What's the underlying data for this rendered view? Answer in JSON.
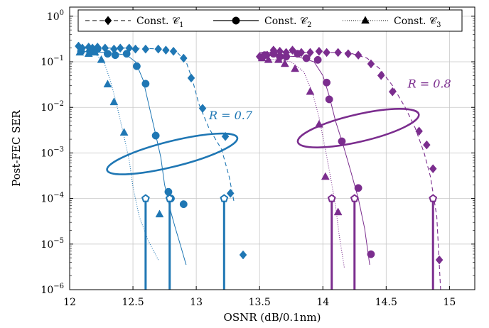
{
  "chart_data": {
    "type": "line",
    "xlabel": "OSNR (dB/0.1nm)",
    "ylabel": "Post-FEC SER",
    "xlim": [
      12,
      15.2
    ],
    "ylim_log10": [
      -6,
      0.2
    ],
    "y_scale": "log",
    "grid": true,
    "legend_placement": "top",
    "x_ticks": [
      {
        "value": 12,
        "label": "12"
      },
      {
        "value": 12.5,
        "label": "12.5"
      },
      {
        "value": 13,
        "label": "13"
      },
      {
        "value": 13.5,
        "label": "13.5"
      },
      {
        "value": 14,
        "label": "14"
      },
      {
        "value": 14.5,
        "label": "14.5"
      },
      {
        "value": 15,
        "label": "15"
      }
    ],
    "y_ticks": [
      {
        "exp": 0,
        "base": "10",
        "sup": "0"
      },
      {
        "exp": -1,
        "base": "10",
        "sup": "−1"
      },
      {
        "exp": -2,
        "base": "10",
        "sup": "−2"
      },
      {
        "exp": -3,
        "base": "10",
        "sup": "−3"
      },
      {
        "exp": -4,
        "base": "10",
        "sup": "−4"
      },
      {
        "exp": -5,
        "base": "10",
        "sup": "−5"
      },
      {
        "exp": -6,
        "base": "10",
        "sup": "−6"
      }
    ],
    "colors": {
      "blue": "#1f77b4",
      "purple": "#7b2d8e"
    },
    "legend": [
      {
        "label": "Const. 𝒞",
        "sub": "1",
        "line": "dashed",
        "marker": "diamond"
      },
      {
        "label": "Const. 𝒞",
        "sub": "2",
        "line": "solid",
        "marker": "circle"
      },
      {
        "label": "Const. 𝒞",
        "sub": "3",
        "line": "dotted",
        "marker": "triangle"
      }
    ],
    "annotations": [
      {
        "text": "R = 0.7",
        "x": 13.1,
        "y": 0.0055,
        "color": "blue"
      },
      {
        "text": "R = 0.8",
        "x": 14.67,
        "y": 0.027,
        "color": "purple"
      }
    ],
    "series": [
      {
        "group": "R = 0.7",
        "constellation": "C1",
        "color": "blue",
        "kind": "markers",
        "marker": "diamond",
        "points": [
          [
            12.07,
            0.22
          ],
          [
            12.1,
            0.2
          ],
          [
            12.15,
            0.21
          ],
          [
            12.18,
            0.2
          ],
          [
            12.22,
            0.21
          ],
          [
            12.28,
            0.2
          ],
          [
            12.35,
            0.19
          ],
          [
            12.4,
            0.2
          ],
          [
            12.47,
            0.2
          ],
          [
            12.52,
            0.19
          ],
          [
            12.6,
            0.19
          ],
          [
            12.7,
            0.19
          ],
          [
            12.76,
            0.18
          ],
          [
            12.82,
            0.17
          ],
          [
            12.9,
            0.12
          ],
          [
            12.96,
            0.044
          ],
          [
            13.05,
            0.0095
          ],
          [
            13.23,
            0.0023
          ],
          [
            13.27,
            0.00013
          ],
          [
            13.37,
            5.8e-06
          ]
        ]
      },
      {
        "group": "R = 0.7",
        "constellation": "C1",
        "color": "blue",
        "kind": "line",
        "line": "dashed",
        "points": [
          [
            12.07,
            0.2
          ],
          [
            12.5,
            0.2
          ],
          [
            12.75,
            0.19
          ],
          [
            12.85,
            0.16
          ],
          [
            12.92,
            0.1
          ],
          [
            12.97,
            0.04
          ],
          [
            13.02,
            0.012
          ],
          [
            13.1,
            0.0035
          ],
          [
            13.2,
            0.0012
          ],
          [
            13.26,
            0.0003
          ],
          [
            13.3,
            8e-05
          ]
        ]
      },
      {
        "group": "R = 0.7",
        "constellation": "C2",
        "color": "blue",
        "kind": "markers",
        "marker": "circle",
        "points": [
          [
            12.09,
            0.17
          ],
          [
            12.16,
            0.17
          ],
          [
            12.22,
            0.19
          ],
          [
            12.3,
            0.15
          ],
          [
            12.36,
            0.14
          ],
          [
            12.45,
            0.15
          ],
          [
            12.53,
            0.08
          ],
          [
            12.6,
            0.033
          ],
          [
            12.68,
            0.0024
          ],
          [
            12.78,
            0.00014
          ],
          [
            12.8,
            0.0001
          ],
          [
            12.9,
            7.5e-05
          ]
        ]
      },
      {
        "group": "R = 0.7",
        "constellation": "C2",
        "color": "blue",
        "kind": "line",
        "line": "solid",
        "points": [
          [
            12.08,
            0.17
          ],
          [
            12.3,
            0.16
          ],
          [
            12.45,
            0.14
          ],
          [
            12.52,
            0.1
          ],
          [
            12.58,
            0.04
          ],
          [
            12.63,
            0.01
          ],
          [
            12.68,
            0.0025
          ],
          [
            12.72,
            0.0008
          ],
          [
            12.75,
            0.0002
          ],
          [
            12.8,
            5e-05
          ],
          [
            12.83,
            2.5e-05
          ],
          [
            12.88,
            8.5e-06
          ],
          [
            12.92,
            3.5e-06
          ]
        ]
      },
      {
        "group": "R = 0.7",
        "constellation": "C3",
        "color": "blue",
        "kind": "markers",
        "marker": "triangle",
        "points": [
          [
            12.08,
            0.16
          ],
          [
            12.15,
            0.15
          ],
          [
            12.2,
            0.16
          ],
          [
            12.25,
            0.11
          ],
          [
            12.3,
            0.032
          ],
          [
            12.35,
            0.013
          ],
          [
            12.43,
            0.0028
          ],
          [
            12.71,
            4.5e-05
          ]
        ]
      },
      {
        "group": "R = 0.7",
        "constellation": "C3",
        "color": "blue",
        "kind": "line",
        "line": "dotted",
        "points": [
          [
            12.07,
            0.16
          ],
          [
            12.2,
            0.15
          ],
          [
            12.27,
            0.1
          ],
          [
            12.32,
            0.04
          ],
          [
            12.37,
            0.012
          ],
          [
            12.42,
            0.003
          ],
          [
            12.47,
            0.0007
          ],
          [
            12.5,
            0.00018
          ],
          [
            12.55,
            4e-05
          ],
          [
            12.62,
            1.2e-05
          ],
          [
            12.7,
            4.5e-06
          ]
        ]
      },
      {
        "group": "R = 0.8",
        "constellation": "C1",
        "color": "purple",
        "kind": "markers",
        "marker": "diamond",
        "points": [
          [
            13.5,
            0.13
          ],
          [
            13.56,
            0.14
          ],
          [
            13.61,
            0.18
          ],
          [
            13.66,
            0.17
          ],
          [
            13.71,
            0.16
          ],
          [
            13.76,
            0.18
          ],
          [
            13.83,
            0.16
          ],
          [
            13.9,
            0.16
          ],
          [
            13.97,
            0.17
          ],
          [
            14.03,
            0.16
          ],
          [
            14.12,
            0.16
          ],
          [
            14.2,
            0.15
          ],
          [
            14.28,
            0.14
          ],
          [
            14.38,
            0.09
          ],
          [
            14.46,
            0.05
          ],
          [
            14.55,
            0.022
          ],
          [
            14.76,
            0.003
          ],
          [
            14.82,
            0.0015
          ],
          [
            14.87,
            0.00045
          ],
          [
            14.92,
            4.5e-06
          ]
        ]
      },
      {
        "group": "R = 0.8",
        "constellation": "C1",
        "color": "purple",
        "kind": "line",
        "line": "dashed",
        "points": [
          [
            13.5,
            0.16
          ],
          [
            14.2,
            0.16
          ],
          [
            14.35,
            0.12
          ],
          [
            14.45,
            0.07
          ],
          [
            14.55,
            0.03
          ],
          [
            14.65,
            0.01
          ],
          [
            14.73,
            0.0035
          ],
          [
            14.8,
            0.001
          ],
          [
            14.85,
            0.0003
          ],
          [
            14.9,
            4e-05
          ],
          [
            14.93,
            1e-06
          ]
        ]
      },
      {
        "group": "R = 0.8",
        "constellation": "C2",
        "color": "purple",
        "kind": "markers",
        "marker": "circle",
        "points": [
          [
            13.54,
            0.14
          ],
          [
            13.61,
            0.15
          ],
          [
            13.66,
            0.13
          ],
          [
            13.71,
            0.13
          ],
          [
            13.8,
            0.15
          ],
          [
            13.87,
            0.12
          ],
          [
            13.96,
            0.11
          ],
          [
            14.03,
            0.035
          ],
          [
            14.05,
            0.015
          ],
          [
            14.15,
            0.0018
          ],
          [
            14.28,
            0.00017
          ],
          [
            14.38,
            6e-06
          ]
        ]
      },
      {
        "group": "R = 0.8",
        "constellation": "C2",
        "color": "purple",
        "kind": "line",
        "line": "solid",
        "points": [
          [
            13.52,
            0.14
          ],
          [
            13.8,
            0.13
          ],
          [
            13.93,
            0.1
          ],
          [
            14.0,
            0.05
          ],
          [
            14.05,
            0.018
          ],
          [
            14.1,
            0.005
          ],
          [
            14.16,
            0.0015
          ],
          [
            14.22,
            0.0004
          ],
          [
            14.28,
            0.0001
          ],
          [
            14.33,
            2.2e-05
          ],
          [
            14.37,
            3.5e-06
          ]
        ]
      },
      {
        "group": "R = 0.8",
        "constellation": "C3",
        "color": "purple",
        "kind": "markers",
        "marker": "triangle",
        "points": [
          [
            13.52,
            0.12
          ],
          [
            13.57,
            0.11
          ],
          [
            13.65,
            0.11
          ],
          [
            13.7,
            0.09
          ],
          [
            13.78,
            0.07
          ],
          [
            13.9,
            0.022
          ],
          [
            13.97,
            0.0042
          ],
          [
            14.02,
            0.0003
          ],
          [
            14.12,
            5e-05
          ]
        ]
      },
      {
        "group": "R = 0.8",
        "constellation": "C3",
        "color": "purple",
        "kind": "line",
        "line": "dotted",
        "points": [
          [
            13.52,
            0.12
          ],
          [
            13.75,
            0.1
          ],
          [
            13.85,
            0.06
          ],
          [
            13.92,
            0.02
          ],
          [
            13.97,
            0.006
          ],
          [
            14.02,
            0.0012
          ],
          [
            14.06,
            0.0003
          ],
          [
            14.1,
            7e-05
          ],
          [
            14.13,
            1.5e-05
          ],
          [
            14.17,
            3e-06
          ]
        ]
      }
    ],
    "threshold_markers": [
      {
        "x": 12.6,
        "y": 0.0001,
        "color": "blue"
      },
      {
        "x": 12.79,
        "y": 0.0001,
        "color": "blue"
      },
      {
        "x": 13.22,
        "y": 0.0001,
        "color": "blue"
      },
      {
        "x": 14.07,
        "y": 0.0001,
        "color": "purple"
      },
      {
        "x": 14.25,
        "y": 0.0001,
        "color": "purple"
      },
      {
        "x": 14.87,
        "y": 0.0001,
        "color": "purple"
      }
    ],
    "ellipses": [
      {
        "cx": 12.81,
        "cy": 0.00095,
        "rx": 0.53,
        "rdecades": 0.28,
        "rotation": -14,
        "color": "blue"
      },
      {
        "cx": 14.28,
        "cy": 0.0035,
        "rx": 0.49,
        "rdecades": 0.3,
        "rotation": -13,
        "color": "purple"
      }
    ]
  }
}
